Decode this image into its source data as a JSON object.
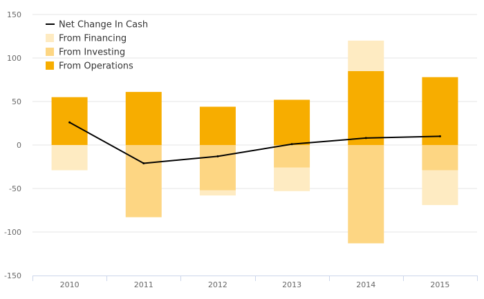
{
  "chart_data": {
    "type": "bar",
    "stacked": true,
    "categories": [
      "2010",
      "2011",
      "2012",
      "2013",
      "2014",
      "2015"
    ],
    "series": [
      {
        "name": "From Operations",
        "type": "bar",
        "color": "#f7ad00",
        "values": [
          55,
          61,
          44,
          52,
          85,
          78
        ]
      },
      {
        "name": "From Investing",
        "type": "bar",
        "color": "#fdd683",
        "values": [
          0,
          -83,
          -52,
          -26,
          -113,
          -29
        ]
      },
      {
        "name": "From Financing",
        "type": "bar",
        "color": "#feebc2",
        "values": [
          -29,
          0,
          -6,
          -27,
          35,
          -40
        ]
      },
      {
        "name": "Net Change In Cash",
        "type": "line",
        "color": "#000000",
        "values": [
          26,
          -21,
          -13,
          1,
          8,
          10
        ]
      }
    ],
    "yticks": [
      150,
      100,
      50,
      0,
      -50,
      -100,
      -150
    ],
    "ylim": [
      -150,
      150
    ],
    "grid": true,
    "legend": {
      "position": "top-left",
      "entries": [
        "Net Change In Cash",
        "From Financing",
        "From Investing",
        "From Operations"
      ]
    },
    "title": "",
    "xlabel": "",
    "ylabel": ""
  }
}
